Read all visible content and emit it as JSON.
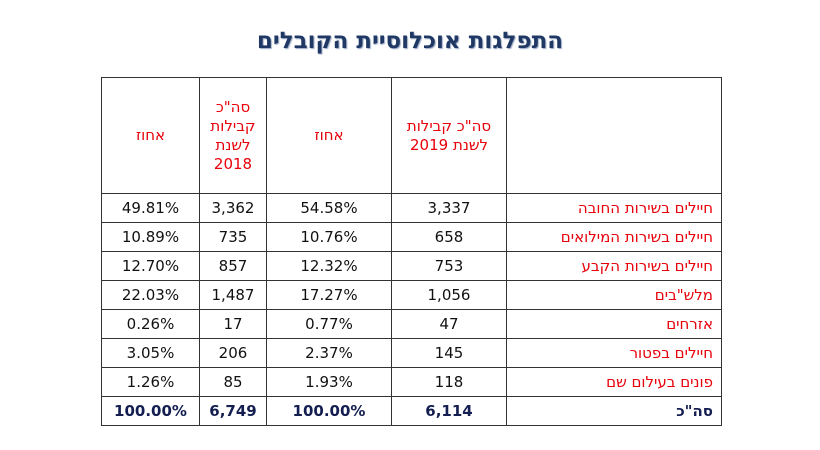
{
  "title": "התפלגות אוכלוסיית הקובלים",
  "table": {
    "headers": [
      "",
      "סה\"כ קבילות לשנת 2019",
      "אחוז",
      "סה\"כ קבילות לשנת 2018",
      "אחוז"
    ],
    "rows": [
      {
        "label": "חיילים בשירות החובה",
        "total_2019": "3,337",
        "pct_2019": "54.58%",
        "total_2018": "3,362",
        "pct_2018": "49.81%"
      },
      {
        "label": "חיילים בשירות המילואים",
        "total_2019": "658",
        "pct_2019": "10.76%",
        "total_2018": "735",
        "pct_2018": "10.89%"
      },
      {
        "label": "חיילים בשירות הקבע",
        "total_2019": "753",
        "pct_2019": "12.32%",
        "total_2018": "857",
        "pct_2018": "12.70%"
      },
      {
        "label": "מלש\"בים",
        "total_2019": "1,056",
        "pct_2019": "17.27%",
        "total_2018": "1,487",
        "pct_2018": "22.03%"
      },
      {
        "label": "אזרחים",
        "total_2019": "47",
        "pct_2019": "0.77%",
        "total_2018": "17",
        "pct_2018": "0.26%"
      },
      {
        "label": "חיילים בפטור",
        "total_2019": "145",
        "pct_2019": "2.37%",
        "total_2018": "206",
        "pct_2018": "3.05%"
      },
      {
        "label": "פונים בעילום שם",
        "total_2019": "118",
        "pct_2019": "1.93%",
        "total_2018": "85",
        "pct_2018": "1.26%"
      }
    ],
    "total": {
      "label": "סה\"כ",
      "total_2019": "6,114",
      "pct_2019": "100.00%",
      "total_2018": "6,749",
      "pct_2018": "100.00%"
    }
  }
}
